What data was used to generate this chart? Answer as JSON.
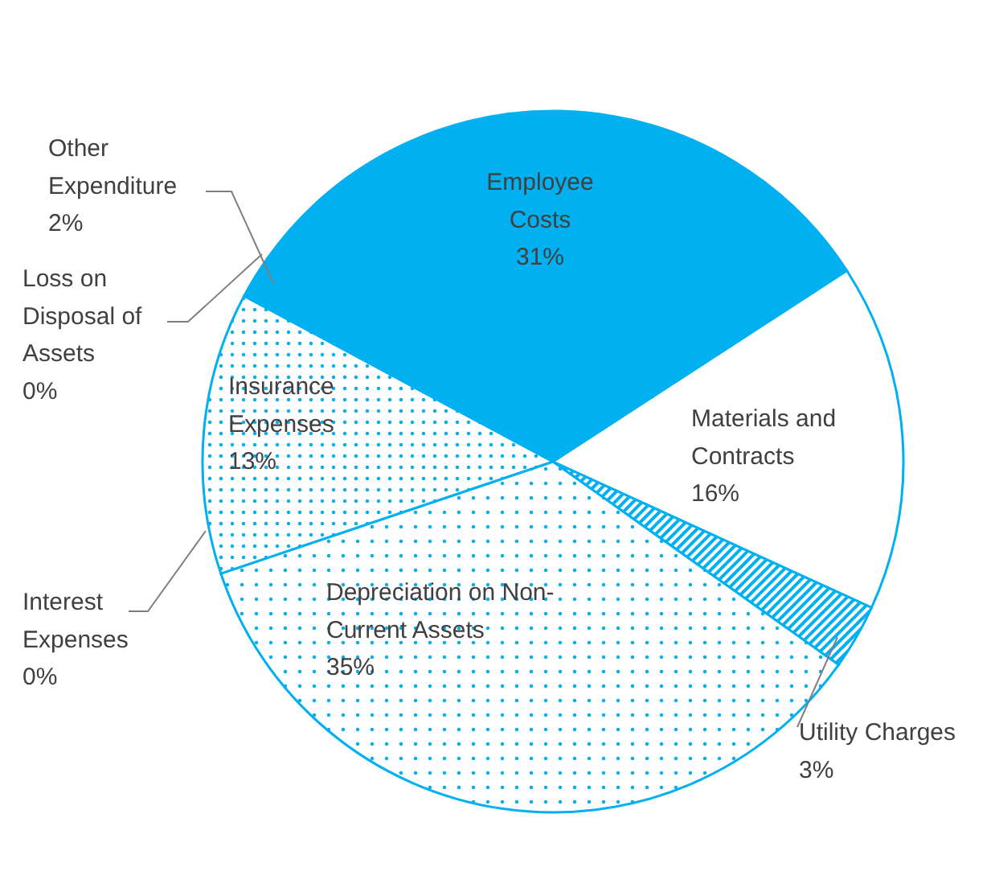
{
  "chart_data": {
    "type": "pie",
    "categories": [
      "Employee Costs",
      "Materials and Contracts",
      "Utility Charges",
      "Depreciation on Non-Current Assets",
      "Interest Expenses",
      "Insurance Expenses",
      "Loss on Disposal of Assets",
      "Other Expenditure"
    ],
    "values": [
      31,
      16,
      3,
      35,
      0,
      13,
      0,
      2
    ],
    "value_labels": [
      "31%",
      "16%",
      "3%",
      "35%",
      "0%",
      "13%",
      "0%",
      "2%"
    ],
    "colors": [
      "#00b0f0",
      "#ffffff",
      "#00b0f0",
      "#00b0f0",
      "#00b0f0",
      "#00b0f0",
      "#00b0f0",
      "#00b0f0"
    ]
  }
}
